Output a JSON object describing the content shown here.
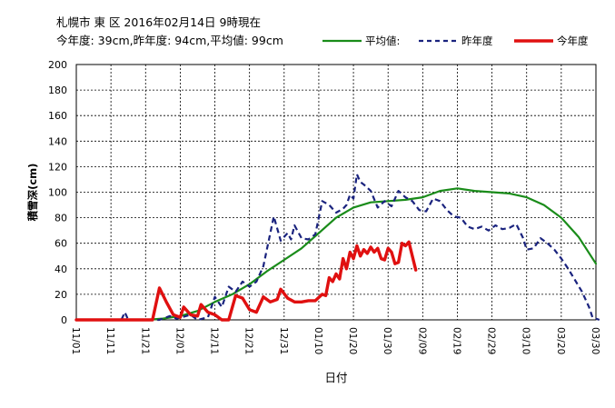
{
  "header": {
    "title": "札幌市 東 区 2016年02月14日 9時現在",
    "summary": "今年度: 39cm,昨年度: 94cm,平均値: 99cm"
  },
  "legend": {
    "average_label": "平均値:",
    "last_year_label": "昨年度",
    "this_year_label": "今年度"
  },
  "colors": {
    "average": "#1a8c1a",
    "last_year": "#1a237e",
    "this_year": "#e01010",
    "grid": "#000000"
  },
  "chart_data": {
    "type": "line",
    "xlabel": "日付",
    "ylabel": "積雪深(cm)",
    "ylim": [
      0,
      200
    ],
    "yticks": [
      0,
      20,
      40,
      60,
      80,
      100,
      120,
      140,
      160,
      180,
      200
    ],
    "xlim": [
      0,
      150
    ],
    "xticks": [
      {
        "day": 0,
        "label": "11/01"
      },
      {
        "day": 10,
        "label": "11/11"
      },
      {
        "day": 20,
        "label": "11/21"
      },
      {
        "day": 30,
        "label": "12/01"
      },
      {
        "day": 40,
        "label": "12/11"
      },
      {
        "day": 50,
        "label": "12/21"
      },
      {
        "day": 60,
        "label": "12/31"
      },
      {
        "day": 70,
        "label": "01/10"
      },
      {
        "day": 80,
        "label": "01/20"
      },
      {
        "day": 90,
        "label": "01/30"
      },
      {
        "day": 100,
        "label": "02/09"
      },
      {
        "day": 110,
        "label": "02/19"
      },
      {
        "day": 120,
        "label": "02/29"
      },
      {
        "day": 130,
        "label": "03/10"
      },
      {
        "day": 140,
        "label": "03/20"
      },
      {
        "day": 150,
        "label": "03/30"
      }
    ],
    "grid": true,
    "legend_position": "top-right",
    "series": [
      {
        "name": "平均値:",
        "style": "solid",
        "color": "#1a8c1a",
        "points": [
          [
            0,
            0
          ],
          [
            20,
            0
          ],
          [
            25,
            1
          ],
          [
            30,
            3
          ],
          [
            35,
            7
          ],
          [
            40,
            14
          ],
          [
            45,
            20
          ],
          [
            50,
            28
          ],
          [
            55,
            38
          ],
          [
            60,
            47
          ],
          [
            65,
            56
          ],
          [
            70,
            68
          ],
          [
            75,
            80
          ],
          [
            80,
            88
          ],
          [
            85,
            92
          ],
          [
            90,
            93
          ],
          [
            95,
            94
          ],
          [
            100,
            96
          ],
          [
            105,
            101
          ],
          [
            110,
            103
          ],
          [
            115,
            101
          ],
          [
            120,
            100
          ],
          [
            125,
            99
          ],
          [
            130,
            96
          ],
          [
            135,
            90
          ],
          [
            140,
            80
          ],
          [
            145,
            65
          ],
          [
            150,
            44
          ]
        ]
      },
      {
        "name": "昨年度",
        "style": "dashed",
        "color": "#1a237e",
        "points": [
          [
            0,
            0
          ],
          [
            13,
            0
          ],
          [
            14,
            6
          ],
          [
            15,
            0
          ],
          [
            24,
            0
          ],
          [
            27,
            3
          ],
          [
            29,
            1
          ],
          [
            33,
            4
          ],
          [
            35,
            0
          ],
          [
            38,
            2
          ],
          [
            40,
            18
          ],
          [
            42,
            10
          ],
          [
            44,
            26
          ],
          [
            46,
            22
          ],
          [
            48,
            30
          ],
          [
            50,
            26
          ],
          [
            52,
            30
          ],
          [
            54,
            42
          ],
          [
            57,
            81
          ],
          [
            59,
            62
          ],
          [
            61,
            68
          ],
          [
            62,
            63
          ],
          [
            63,
            74
          ],
          [
            65,
            64
          ],
          [
            67,
            63
          ],
          [
            69,
            67
          ],
          [
            71,
            93
          ],
          [
            73,
            90
          ],
          [
            75,
            84
          ],
          [
            77,
            87
          ],
          [
            78,
            90
          ],
          [
            79,
            98
          ],
          [
            80,
            95
          ],
          [
            81,
            114
          ],
          [
            82,
            108
          ],
          [
            83,
            106
          ],
          [
            85,
            101
          ],
          [
            87,
            88
          ],
          [
            89,
            93
          ],
          [
            91,
            89
          ],
          [
            93,
            101
          ],
          [
            95,
            96
          ],
          [
            97,
            93
          ],
          [
            99,
            86
          ],
          [
            101,
            85
          ],
          [
            103,
            95
          ],
          [
            105,
            93
          ],
          [
            107,
            86
          ],
          [
            109,
            81
          ],
          [
            111,
            80
          ],
          [
            113,
            73
          ],
          [
            115,
            71
          ],
          [
            117,
            73
          ],
          [
            119,
            70
          ],
          [
            121,
            74
          ],
          [
            123,
            71
          ],
          [
            125,
            72
          ],
          [
            127,
            75
          ],
          [
            129,
            64
          ],
          [
            130,
            55
          ],
          [
            132,
            56
          ],
          [
            134,
            64
          ],
          [
            136,
            60
          ],
          [
            138,
            55
          ],
          [
            140,
            48
          ],
          [
            142,
            40
          ],
          [
            144,
            31
          ],
          [
            146,
            22
          ],
          [
            148,
            10
          ],
          [
            149,
            2
          ],
          [
            151,
            0
          ]
        ]
      },
      {
        "name": "今年度",
        "style": "solid",
        "color": "#e01010",
        "points": [
          [
            0,
            0
          ],
          [
            22,
            0
          ],
          [
            24,
            25
          ],
          [
            26,
            14
          ],
          [
            28,
            4
          ],
          [
            30,
            2
          ],
          [
            31,
            10
          ],
          [
            33,
            4
          ],
          [
            35,
            3
          ],
          [
            36,
            12
          ],
          [
            38,
            6
          ],
          [
            40,
            4
          ],
          [
            42,
            0
          ],
          [
            44,
            0
          ],
          [
            46,
            19
          ],
          [
            48,
            17
          ],
          [
            50,
            8
          ],
          [
            52,
            6
          ],
          [
            54,
            18
          ],
          [
            56,
            14
          ],
          [
            58,
            16
          ],
          [
            59,
            24
          ],
          [
            61,
            17
          ],
          [
            63,
            14
          ],
          [
            65,
            14
          ],
          [
            67,
            15
          ],
          [
            69,
            15
          ],
          [
            71,
            20
          ],
          [
            72,
            19
          ],
          [
            73,
            33
          ],
          [
            74,
            30
          ],
          [
            75,
            36
          ],
          [
            76,
            32
          ],
          [
            77,
            48
          ],
          [
            78,
            40
          ],
          [
            79,
            53
          ],
          [
            80,
            48
          ],
          [
            81,
            58
          ],
          [
            82,
            50
          ],
          [
            83,
            55
          ],
          [
            84,
            52
          ],
          [
            85,
            57
          ],
          [
            86,
            53
          ],
          [
            87,
            56
          ],
          [
            88,
            48
          ],
          [
            89,
            47
          ],
          [
            90,
            56
          ],
          [
            91,
            53
          ],
          [
            92,
            44
          ],
          [
            93,
            45
          ],
          [
            94,
            60
          ],
          [
            95,
            58
          ],
          [
            96,
            61
          ],
          [
            97,
            50
          ],
          [
            98,
            39
          ]
        ]
      }
    ]
  }
}
